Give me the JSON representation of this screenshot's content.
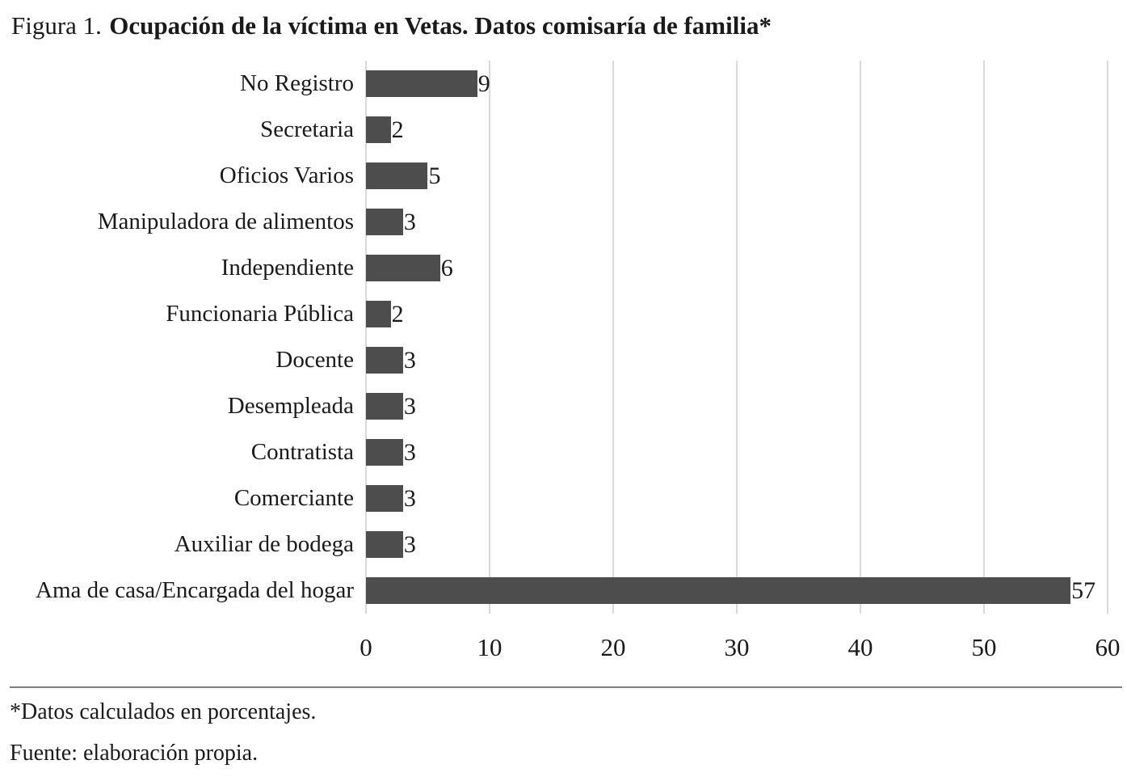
{
  "title": {
    "prefix": "Figura 1.",
    "main": "Ocupación de la víctima en Vetas. Datos comisaría de familia*"
  },
  "chart_data": {
    "type": "bar",
    "orientation": "horizontal",
    "title": "Figura 1. Ocupación de la víctima en Vetas. Datos comisaría de familia*",
    "categories": [
      "No Registro",
      "Secretaria",
      "Oficios Varios",
      "Manipuladora de alimentos",
      "Independiente",
      "Funcionaria Pública",
      "Docente",
      "Desempleada",
      "Contratista",
      "Comerciante",
      "Auxiliar de bodega",
      "Ama de casa/Encargada del hogar"
    ],
    "values": [
      9,
      2,
      5,
      3,
      6,
      2,
      3,
      3,
      3,
      3,
      3,
      57
    ],
    "xlabel": "",
    "ylabel": "",
    "xlim": [
      0,
      60
    ],
    "x_ticks": [
      0,
      10,
      20,
      30,
      40,
      50,
      60
    ],
    "grid": "vertical",
    "legend": "none",
    "data_labels": true,
    "bar_color": "#4d4d4d",
    "gridline_color": "#d9d9d9"
  },
  "footnotes": [
    "*Datos calculados en porcentajes.",
    "Fuente: elaboración propia."
  ]
}
